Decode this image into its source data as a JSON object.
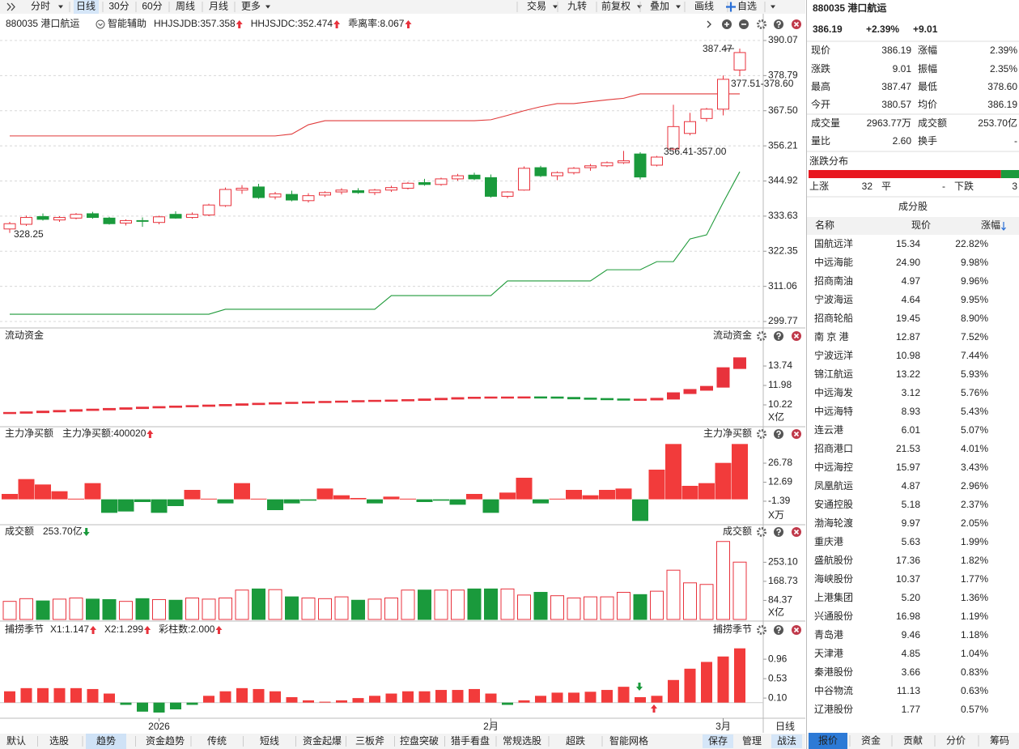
{
  "toolbar": {
    "left": [
      "分时",
      "日线",
      "30分",
      "60分",
      "周线",
      "月线",
      "更多"
    ],
    "right": [
      "交易",
      "九转",
      "前复权",
      "叠加",
      "画线",
      "自选"
    ]
  },
  "chart_data": [
    {
      "type": "candlestick",
      "title": "880035 港口航运",
      "subtitle": "智能辅助",
      "indicators": [
        {
          "text": "HHJSJDB:357.358",
          "color": "#e07b00"
        },
        {
          "text": "HHJSJDC:352.474",
          "color": "#e8323c"
        },
        {
          "text": "乖离率:8.067",
          "color": "#d9822b"
        }
      ],
      "ohlc": [
        [
          329.5,
          331.8,
          328.25,
          331.2
        ],
        [
          331.0,
          333.8,
          330.5,
          333.2
        ],
        [
          333.5,
          334.5,
          332.2,
          332.6
        ],
        [
          332.4,
          333.6,
          331.8,
          333.2
        ],
        [
          333.0,
          334.6,
          332.6,
          334.2
        ],
        [
          334.4,
          335.0,
          332.8,
          333.2
        ],
        [
          333.0,
          333.4,
          330.9,
          331.2
        ],
        [
          331.4,
          332.6,
          330.6,
          332.2
        ],
        [
          332.2,
          333.2,
          330.2,
          332.0
        ],
        [
          331.6,
          333.8,
          331.0,
          333.4
        ],
        [
          334.2,
          335.2,
          332.8,
          333.0
        ],
        [
          333.2,
          334.8,
          332.8,
          334.2
        ],
        [
          334.0,
          337.6,
          333.6,
          337.2
        ],
        [
          337.0,
          342.8,
          336.6,
          342.2
        ],
        [
          342.0,
          343.6,
          340.8,
          342.6
        ],
        [
          343.0,
          344.0,
          339.2,
          339.6
        ],
        [
          339.8,
          341.4,
          339.0,
          340.8
        ],
        [
          340.6,
          341.8,
          338.4,
          338.8
        ],
        [
          338.6,
          341.0,
          338.0,
          340.2
        ],
        [
          340.4,
          341.6,
          339.8,
          341.2
        ],
        [
          341.4,
          342.6,
          340.6,
          342.0
        ],
        [
          341.8,
          342.6,
          340.8,
          341.2
        ],
        [
          341.2,
          342.4,
          340.4,
          342.0
        ],
        [
          342.0,
          343.4,
          341.4,
          342.8
        ],
        [
          342.6,
          344.6,
          342.2,
          344.2
        ],
        [
          344.4,
          345.6,
          343.4,
          343.8
        ],
        [
          343.8,
          346.0,
          343.4,
          345.6
        ],
        [
          345.6,
          347.2,
          345.0,
          346.6
        ],
        [
          346.8,
          347.6,
          345.2,
          345.6
        ],
        [
          346.0,
          347.0,
          339.6,
          340.0
        ],
        [
          340.0,
          341.6,
          339.4,
          341.4
        ],
        [
          342.0,
          349.6,
          341.8,
          349.0
        ],
        [
          349.2,
          349.8,
          346.2,
          346.6
        ],
        [
          346.6,
          348.0,
          345.2,
          347.6
        ],
        [
          347.6,
          349.4,
          347.0,
          349.0
        ],
        [
          349.2,
          350.4,
          348.2,
          349.8
        ],
        [
          349.8,
          351.2,
          349.4,
          350.8
        ],
        [
          350.8,
          354.6,
          350.4,
          351.4
        ],
        [
          353.6,
          354.2,
          345.4,
          346.2
        ],
        [
          350.0,
          353.0,
          349.6,
          352.6
        ],
        [
          355.2,
          369.4,
          354.8,
          362.4
        ],
        [
          360.2,
          366.8,
          359.6,
          364.0
        ],
        [
          365.0,
          368.4,
          364.0,
          368.0
        ],
        [
          368.0,
          378.8,
          366.0,
          377.6
        ],
        [
          380.57,
          387.47,
          378.6,
          386.19
        ]
      ],
      "lines": [
        {
          "color": "#e03a3a",
          "values": [
            359.4,
            359.4,
            359.4,
            359.4,
            359.4,
            359.4,
            359.4,
            359.4,
            359.4,
            359.4,
            359.4,
            359.4,
            359.4,
            359.4,
            359.4,
            359.4,
            359.4,
            360,
            363,
            364.3,
            364.3,
            364.3,
            364.3,
            364.3,
            364.3,
            364.3,
            364.3,
            364.3,
            364.3,
            364.6,
            366,
            367.5,
            368.8,
            369.8,
            369.8,
            370.4,
            371,
            371.5,
            372.9,
            372.9,
            372.9,
            372.9,
            372.9,
            372.9,
            372.9
          ]
        },
        {
          "color": "#1f9a3a",
          "values": [
            302.1,
            302.1,
            302.1,
            302.1,
            302.1,
            302.1,
            302.1,
            302.1,
            302.1,
            302.1,
            302.1,
            302.1,
            302.1,
            303.7,
            303.7,
            303.7,
            303.7,
            303.7,
            303.7,
            303.7,
            303.7,
            303.7,
            303.7,
            308.1,
            308.1,
            308.1,
            308.1,
            308.1,
            308.1,
            308.1,
            312.8,
            312.8,
            312.8,
            312.8,
            312.8,
            312.8,
            316.4,
            316.4,
            316.4,
            319,
            319,
            326.3,
            327.6,
            338,
            347.9
          ]
        }
      ],
      "annotations": [
        "387.47",
        "377.51-378.60",
        "356.41-357.00",
        "328.25"
      ],
      "ylim": [
        298.48,
        392.15
      ],
      "yticks": [
        390.07,
        378.79,
        {
          "value": 367.5,
          "label": "367.50"
        },
        356.21,
        344.92,
        333.63,
        322.35,
        311.06,
        299.77
      ],
      "grid": true
    },
    {
      "type": "flow",
      "title": "流动资金",
      "title_right": "流动资金",
      "unit": "X亿",
      "values": [
        9.5,
        9.55,
        9.62,
        9.68,
        9.75,
        9.8,
        9.86,
        9.92,
        9.98,
        10.03,
        10.08,
        10.12,
        10.17,
        10.22,
        10.28,
        10.33,
        10.38,
        10.42,
        10.46,
        10.5,
        10.53,
        10.57,
        10.6,
        10.62,
        10.66,
        10.72,
        10.78,
        10.84,
        10.88,
        10.9,
        10.9,
        10.91,
        10.9,
        10.86,
        10.8,
        10.76,
        10.72,
        10.7,
        10.7,
        10.78,
        11.28,
        11.58,
        11.86,
        13.55,
        14.45
      ],
      "ylim": [
        8.46,
        16.97
      ],
      "yticks": [
        13.74,
        11.98,
        10.22
      ]
    },
    {
      "type": "bar",
      "title": "主力净买额",
      "legend": "主力净买额:400020",
      "title_right": "主力净买额",
      "unit": "X万",
      "values": [
        4,
        15,
        11,
        6,
        0.5,
        12,
        -10,
        -9,
        -2,
        -10,
        -5,
        7,
        0.5,
        -3,
        12,
        0.5,
        -8,
        -3,
        -1,
        8,
        3,
        1,
        -3,
        2,
        0.5,
        -2,
        -1,
        -4,
        4,
        -10,
        5,
        16,
        -3,
        0.5,
        7,
        3,
        7,
        8,
        -16,
        22,
        41,
        10,
        12,
        27,
        41
      ],
      "ylim": [
        -17,
        52
      ],
      "yticks": [
        26.78,
        12.69,
        -1.39
      ]
    },
    {
      "type": "volume",
      "title": "成交额",
      "legend": "253.70亿",
      "title_right": "成交额",
      "unit": "X亿",
      "values": [
        80,
        92,
        82,
        90,
        95,
        90,
        88,
        80,
        92,
        88,
        85,
        95,
        90,
        95,
        130,
        135,
        132,
        100,
        95,
        92,
        100,
        85,
        90,
        95,
        130,
        130,
        130,
        130,
        135,
        135,
        135,
        108,
        120,
        105,
        95,
        100,
        100,
        120,
        110,
        125,
        218,
        162,
        155,
        345,
        253.7
      ],
      "ylim": [
        0,
        405
      ],
      "yticks": [
        {
          "value": 253.1,
          "label": "253.10"
        },
        168.73,
        84.37
      ]
    },
    {
      "type": "bar",
      "title": "捕捞季节",
      "title_right": "捕捞季节",
      "indicators": [
        {
          "text": "X1:1.147",
          "color": "#e07b00"
        },
        {
          "text": "X2:1.299",
          "color": "#d020d0"
        },
        {
          "text": "彩柱数:2.000",
          "color": "#1a9a3c"
        }
      ],
      "values": [
        0.25,
        0.32,
        0.32,
        0.32,
        0.32,
        0.3,
        0.2,
        -0.05,
        -0.2,
        -0.22,
        -0.15,
        -0.05,
        0.15,
        0.25,
        0.32,
        0.3,
        0.25,
        0.12,
        0.05,
        0.02,
        0.05,
        0.1,
        0.15,
        0.2,
        0.25,
        0.25,
        0.28,
        0.28,
        0.3,
        0.2,
        -0.05,
        0.05,
        0.15,
        0.22,
        0.22,
        0.24,
        0.28,
        0.35,
        0.12,
        0.15,
        0.5,
        0.75,
        0.9,
        1.02,
        1.2
      ],
      "ylim": [
        -0.31,
        1.75
      ],
      "yticks": [
        0.96,
        0.53,
        {
          "value": 0.1,
          "label": "0.10"
        }
      ],
      "categories": [
        null,
        null,
        null,
        null,
        null,
        null,
        null,
        null,
        null,
        "2026",
        null,
        null,
        null,
        null,
        null,
        null,
        null,
        null,
        null,
        null,
        null,
        null,
        null,
        null,
        null,
        null,
        null,
        null,
        null,
        "2月",
        null,
        null,
        null,
        null,
        null,
        null,
        null,
        null,
        null,
        null,
        null,
        null,
        null,
        "3月",
        null
      ],
      "period": "日线"
    }
  ],
  "bottom_tabs": {
    "left": [
      "默认",
      "选股",
      "趋势",
      "资金趋势",
      "传统",
      "短线",
      "资金起爆",
      "三板斧",
      "控盘突破",
      "猎手看盘",
      "常规选股",
      "超跌",
      "智能网格"
    ],
    "right": [
      "保存",
      "管理",
      "战法"
    ]
  },
  "quote": {
    "title": "880035 港口航运",
    "price": "386.19",
    "change_pct": "+2.39%",
    "change": "+9.01",
    "rows": [
      [
        "现价",
        "386.19",
        "涨幅",
        "2.39%"
      ],
      [
        "涨跌",
        "9.01",
        "振幅",
        "2.35%"
      ],
      [
        "最高",
        "387.47",
        "最低",
        "378.60"
      ],
      [
        "今开",
        "380.57",
        "均价",
        "386.19"
      ],
      [
        "成交量",
        "2963.77万",
        "成交额",
        "253.70亿"
      ],
      [
        "量比",
        "2.60",
        "换手",
        "-"
      ]
    ]
  },
  "distribution": {
    "title": "涨跌分布",
    "up_label": "上涨",
    "up": 32,
    "flat_label": "平",
    "flat": "-",
    "down_label": "下跌",
    "down": 3
  },
  "constituents": {
    "title": "成分股",
    "columns": [
      "名称",
      "现价",
      "涨幅"
    ],
    "rows": [
      {
        "name": "国航远洋",
        "price": "15.34",
        "change": "22.82%"
      },
      {
        "name": "中远海能",
        "price": "24.90",
        "change": "9.98%",
        "color": "#2a6fd6"
      },
      {
        "name": "招商南油",
        "price": "4.97",
        "change": "9.96%",
        "color": "#2a6fd6"
      },
      {
        "name": "宁波海运",
        "price": "4.64",
        "change": "9.95%"
      },
      {
        "name": "招商轮船",
        "price": "19.45",
        "change": "8.90%",
        "color": "#2a6fd6"
      },
      {
        "name": "南 京 港",
        "price": "12.87",
        "change": "7.52%",
        "color": "#d0208a"
      },
      {
        "name": "宁波远洋",
        "price": "10.98",
        "change": "7.44%"
      },
      {
        "name": "锦江航运",
        "price": "13.22",
        "change": "5.93%"
      },
      {
        "name": "中远海发",
        "price": "3.12",
        "change": "5.76%"
      },
      {
        "name": "中远海特",
        "price": "8.93",
        "change": "5.43%"
      },
      {
        "name": "连云港",
        "price": "6.01",
        "change": "5.07%"
      },
      {
        "name": "招商港口",
        "price": "21.53",
        "change": "4.01%"
      },
      {
        "name": "中远海控",
        "price": "15.97",
        "change": "3.43%"
      },
      {
        "name": "凤凰航运",
        "price": "4.87",
        "change": "2.96%"
      },
      {
        "name": "安通控股",
        "price": "5.18",
        "change": "2.37%",
        "color": "#2a6fd6"
      },
      {
        "name": "渤海轮渡",
        "price": "9.97",
        "change": "2.05%"
      },
      {
        "name": "重庆港",
        "price": "5.63",
        "change": "1.99%"
      },
      {
        "name": "盛航股份",
        "price": "17.36",
        "change": "1.82%"
      },
      {
        "name": "海峡股份",
        "price": "10.37",
        "change": "1.77%"
      },
      {
        "name": "上港集团",
        "price": "5.20",
        "change": "1.36%"
      },
      {
        "name": "兴通股份",
        "price": "16.98",
        "change": "1.19%"
      },
      {
        "name": "青岛港",
        "price": "9.46",
        "change": "1.18%"
      },
      {
        "name": "天津港",
        "price": "4.85",
        "change": "1.04%"
      },
      {
        "name": "秦港股份",
        "price": "3.66",
        "change": "0.83%"
      },
      {
        "name": "中谷物流",
        "price": "11.13",
        "change": "0.63%"
      },
      {
        "name": "辽港股份",
        "price": "1.77",
        "change": "0.57%",
        "color": "#d0208a"
      }
    ]
  },
  "quote_tabs": [
    "报价",
    "资金",
    "贡献",
    "分价",
    "筹码"
  ]
}
